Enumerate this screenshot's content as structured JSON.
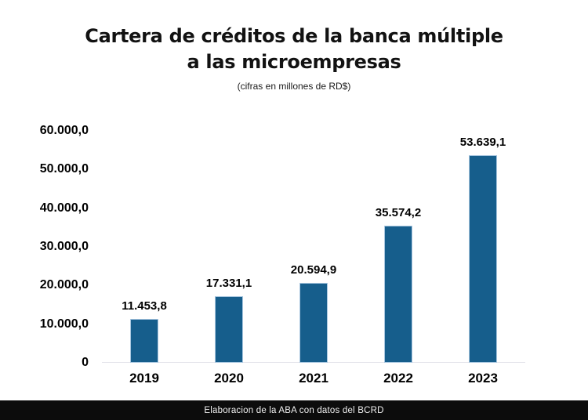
{
  "page": {
    "background": "#ffffff",
    "footer": {
      "text": "Elaboracion de la ABA con datos del BCRD",
      "bg": "#0c0c0c",
      "color": "#f0f0f0"
    }
  },
  "chart_data": {
    "type": "bar",
    "title": "Cartera de créditos de la banca múltiple a las microempresas",
    "title_line1": "Cartera de créditos de la banca múltiple",
    "title_line2": "a las microempresas",
    "subtitle": "(cifras en millones de RD$)",
    "categories": [
      "2019",
      "2020",
      "2021",
      "2022",
      "2023"
    ],
    "values": [
      11453.8,
      17331.1,
      20594.9,
      35574.2,
      53639.1
    ],
    "value_labels": [
      "11.453,8",
      "17.331,1",
      "20.594,9",
      "35.574,2",
      "53.639,1"
    ],
    "xlabel": "",
    "ylabel": "",
    "ylim": [
      0,
      60000
    ],
    "yticks": [
      {
        "value": 60000,
        "label": "60.000,0"
      },
      {
        "value": 50000,
        "label": "50.000,0"
      },
      {
        "value": 40000,
        "label": "40.000,0"
      },
      {
        "value": 30000,
        "label": "30.000,0"
      },
      {
        "value": 20000,
        "label": "20.000,0"
      },
      {
        "value": 10000,
        "label": "10.000,0"
      },
      {
        "value": 0,
        "label": "0"
      }
    ],
    "grid": false,
    "legend": "none",
    "bar_color": "#165E8C",
    "bar_border_color": "#A9C7E0",
    "axis_line_color": "#E4E4EA"
  }
}
